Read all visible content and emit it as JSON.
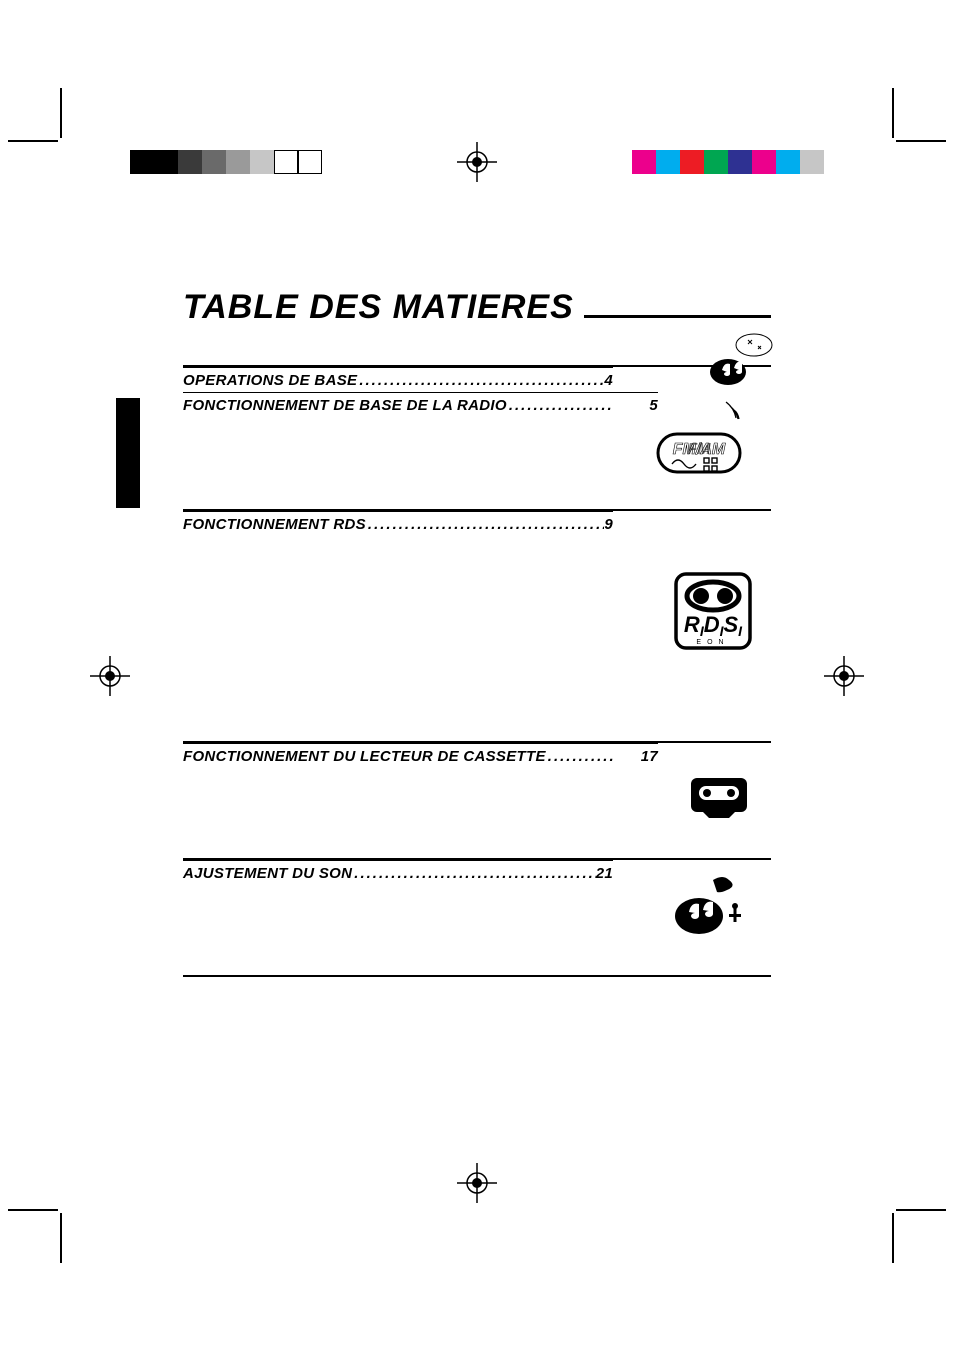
{
  "title": "TABLE DES MATIERES",
  "title_fontsize": 34,
  "title_color": "#000000",
  "background_color": "#ffffff",
  "rule_color": "#000000",
  "toc_fontsize": 15,
  "toc_fontweight": 800,
  "toc_style": "italic",
  "toc": {
    "items": [
      {
        "label": "OPERATIONS DE BASE",
        "page": "4",
        "icon": "music-note-icon"
      },
      {
        "label": "FONCTIONNEMENT DE BASE DE LA RADIO",
        "page": "5",
        "icon": "radio-icon"
      },
      {
        "label": "FONCTIONNEMENT RDS",
        "page": "9",
        "icon": "rds-icon"
      },
      {
        "label": "FONCTIONNEMENT DU LECTEUR DE CASSETTE",
        "page": "17",
        "icon": "cassette-icon"
      },
      {
        "label": "AJUSTEMENT DU SON",
        "page": "21",
        "icon": "sound-adjust-icon"
      }
    ]
  },
  "colorbars": {
    "left_gray": [
      "#000000",
      "#000000",
      "#3a3a3a",
      "#6a6a6a",
      "#9a9a9a",
      "#c6c6c6",
      "outline",
      "outline"
    ],
    "right_color": [
      "#ec008c",
      "#00adee",
      "#ed1c24",
      "#00a651",
      "#2e3192",
      "#ec008c",
      "#00adee",
      "#c6c6c6"
    ]
  },
  "crop_mark_color": "#000000",
  "registration_mark_color": "#000000"
}
